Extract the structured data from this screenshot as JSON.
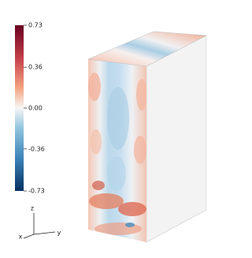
{
  "colorbar": {
    "range": [
      -0.73,
      0.73
    ],
    "ticks": [
      0.73,
      0.36,
      {
        "value": 0,
        "label": "0.00"
      },
      -0.36,
      -0.73
    ]
  },
  "axes": {
    "z": "z",
    "y": "y",
    "x": "x"
  }
}
